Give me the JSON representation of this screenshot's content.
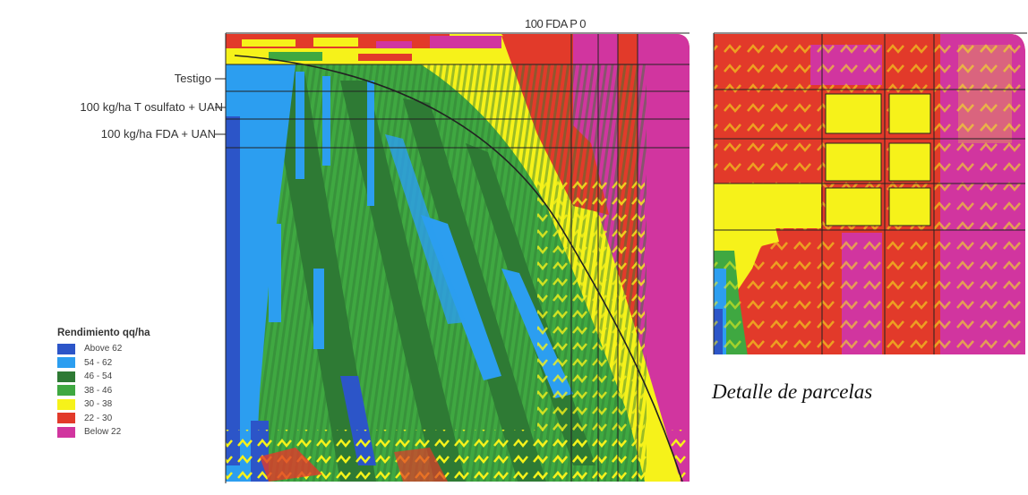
{
  "map": {
    "top_label": "100 FDA P 0",
    "treatment_labels": [
      "Testigo",
      "100 kg/ha T osulfato + UAN",
      "100 kg/ha FDA + UAN"
    ],
    "detail_caption": "Detalle de parcelas"
  },
  "legend": {
    "title": "Rendimiento qq/ha",
    "items": [
      {
        "label": "Above 62",
        "color": "#2c55c8"
      },
      {
        "label": "54 - 62",
        "color": "#2c9ef0"
      },
      {
        "label": "46 - 54",
        "color": "#2e7a34"
      },
      {
        "label": "38 - 46",
        "color": "#3fa841"
      },
      {
        "label": "30 - 38",
        "color": "#f6f21a"
      },
      {
        "label": "22 - 30",
        "color": "#e23a2a"
      },
      {
        "label": "Below 22",
        "color": "#d1359f"
      }
    ]
  }
}
